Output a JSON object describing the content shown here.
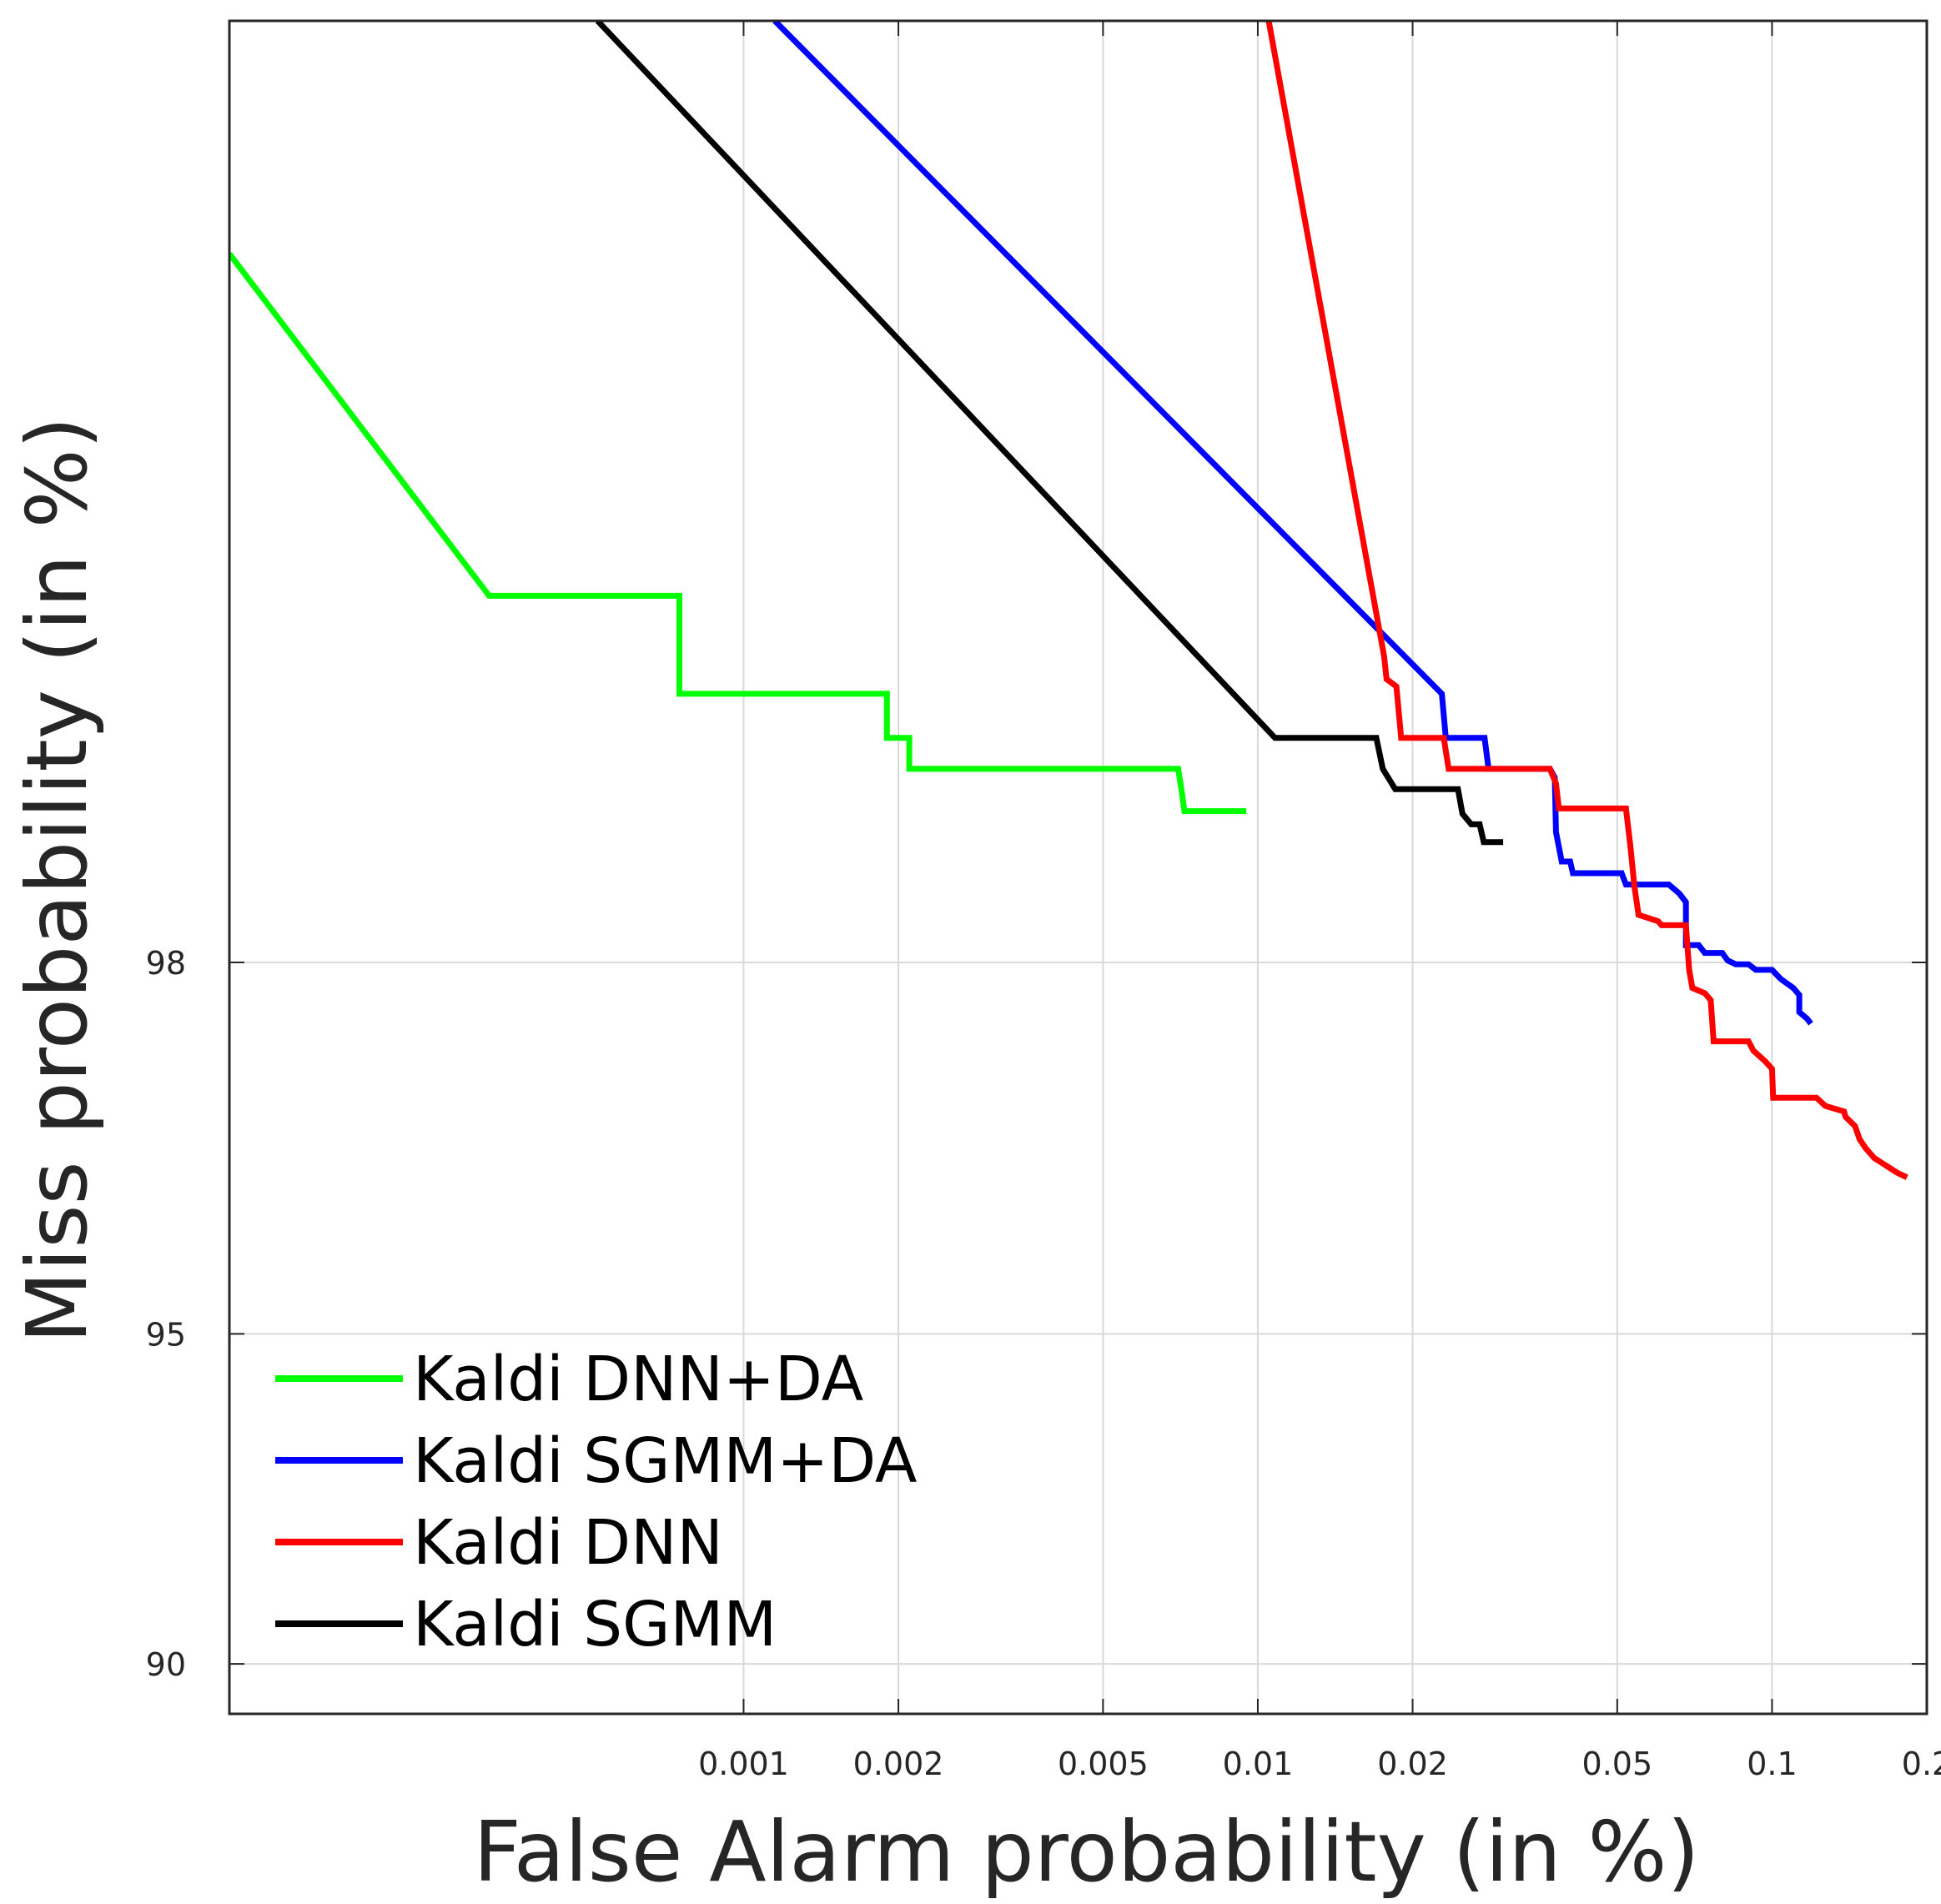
{
  "chart_data": {
    "type": "line",
    "title": "",
    "xlabel": "False Alarm probability (in %)",
    "ylabel": "Miss probability (in %)",
    "x_scale": "log",
    "y_scale": "probit",
    "xlim": [
      0.0001,
      0.2
    ],
    "ylim": [
      89,
      99.9
    ],
    "x_ticks": [
      0.001,
      0.002,
      0.005,
      0.01,
      0.02,
      0.05,
      0.1,
      0.2
    ],
    "x_tick_labels": [
      "0.001",
      "0.002",
      "0.005",
      "0.01",
      "0.02",
      "0.05",
      "0.1",
      "0.2"
    ],
    "y_ticks": [
      90,
      95,
      98
    ],
    "y_tick_labels": [
      "90",
      "95",
      "98"
    ],
    "grid": true,
    "legend_position": "bottom-left",
    "series": [
      {
        "name": "Kaldi DNN+DA",
        "color": "#00ff00",
        "points": [
          [
            0.0001,
            99.77
          ],
          [
            0.00032,
            99.3
          ],
          [
            0.00032,
            99.3
          ],
          [
            0.00075,
            99.3
          ],
          [
            0.00075,
            99.06
          ],
          [
            0.0019,
            99.06
          ],
          [
            0.0019,
            98.93
          ],
          [
            0.0021,
            98.93
          ],
          [
            0.0021,
            98.83
          ],
          [
            0.007,
            98.83
          ],
          [
            0.0071,
            98.76
          ],
          [
            0.0072,
            98.68
          ],
          [
            0.0095,
            98.68
          ]
        ]
      },
      {
        "name": "Kaldi SGMM+DA",
        "color": "#0000ff",
        "points": [
          [
            0.00115,
            99.9
          ],
          [
            0.0228,
            99.06
          ],
          [
            0.0232,
            98.93
          ],
          [
            0.0276,
            98.93
          ],
          [
            0.0281,
            98.83
          ],
          [
            0.037,
            98.83
          ],
          [
            0.0378,
            98.8
          ],
          [
            0.038,
            98.6
          ],
          [
            0.039,
            98.48
          ],
          [
            0.0405,
            98.48
          ],
          [
            0.041,
            98.43
          ],
          [
            0.051,
            98.43
          ],
          [
            0.052,
            98.38
          ],
          [
            0.063,
            98.38
          ],
          [
            0.066,
            98.34
          ],
          [
            0.068,
            98.3
          ],
          [
            0.068,
            98.09
          ],
          [
            0.072,
            98.09
          ],
          [
            0.074,
            98.05
          ],
          [
            0.08,
            98.05
          ],
          [
            0.082,
            98.01
          ],
          [
            0.085,
            97.99
          ],
          [
            0.09,
            97.99
          ],
          [
            0.093,
            97.96
          ],
          [
            0.1,
            97.96
          ],
          [
            0.104,
            97.91
          ],
          [
            0.11,
            97.86
          ],
          [
            0.113,
            97.82
          ],
          [
            0.113,
            97.72
          ],
          [
            0.117,
            97.68
          ],
          [
            0.119,
            97.65
          ]
        ]
      },
      {
        "name": "Kaldi DNN",
        "color": "#ff0000",
        "points": [
          [
            0.0105,
            99.9
          ],
          [
            0.0176,
            99.16
          ],
          [
            0.0178,
            99.1
          ],
          [
            0.0186,
            99.08
          ],
          [
            0.019,
            98.93
          ],
          [
            0.023,
            98.93
          ],
          [
            0.0235,
            98.83
          ],
          [
            0.037,
            98.83
          ],
          [
            0.038,
            98.78
          ],
          [
            0.0385,
            98.69
          ],
          [
            0.052,
            98.69
          ],
          [
            0.053,
            98.55
          ],
          [
            0.054,
            98.37
          ],
          [
            0.055,
            98.24
          ],
          [
            0.06,
            98.21
          ],
          [
            0.061,
            98.19
          ],
          [
            0.068,
            98.19
          ],
          [
            0.069,
            97.96
          ],
          [
            0.07,
            97.86
          ],
          [
            0.074,
            97.83
          ],
          [
            0.076,
            97.79
          ],
          [
            0.077,
            97.54
          ],
          [
            0.09,
            97.54
          ],
          [
            0.092,
            97.48
          ],
          [
            0.097,
            97.41
          ],
          [
            0.1,
            97.36
          ],
          [
            0.1005,
            97.16
          ],
          [
            0.122,
            97.16
          ],
          [
            0.127,
            97.1
          ],
          [
            0.138,
            97.06
          ],
          [
            0.139,
            97.02
          ],
          [
            0.145,
            96.95
          ],
          [
            0.148,
            96.85
          ],
          [
            0.152,
            96.78
          ],
          [
            0.158,
            96.7
          ],
          [
            0.165,
            96.65
          ],
          [
            0.175,
            96.58
          ],
          [
            0.183,
            96.54
          ]
        ]
      },
      {
        "name": "Kaldi SGMM",
        "color": "#000000",
        "points": [
          [
            0.00052,
            99.9
          ],
          [
            0.0108,
            98.93
          ],
          [
            0.017,
            98.93
          ],
          [
            0.0175,
            98.83
          ],
          [
            0.0185,
            98.76
          ],
          [
            0.0245,
            98.76
          ],
          [
            0.025,
            98.67
          ],
          [
            0.026,
            98.63
          ],
          [
            0.027,
            98.63
          ],
          [
            0.0275,
            98.56
          ],
          [
            0.03,
            98.56
          ]
        ]
      }
    ]
  }
}
